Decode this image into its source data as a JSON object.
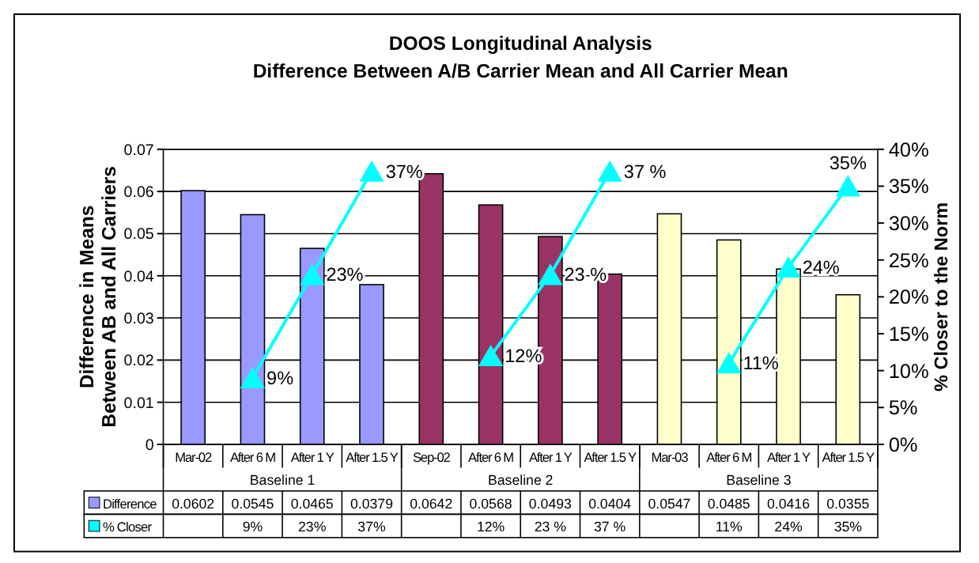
{
  "chart_data": {
    "type": "bar",
    "title": "DOOS Longitudinal Analysis",
    "subtitle": "Difference Between A/B Carrier Mean and All Carrier Mean",
    "ylabel": "Difference in Means\nBetween AB and All Carriers",
    "y2label": "% Closer to the Norm",
    "categories": [
      "Mar-02",
      "After 6 M",
      "After 1 Y",
      "After 1.5 Y",
      "Sep-02",
      "After 6 M",
      "After 1 Y",
      "After 1.5 Y",
      "Mar-03",
      "After 6 M",
      "After 1 Y",
      "After 1.5 Y"
    ],
    "series": [
      {
        "name": "Difference",
        "colors": [
          "#9999ff",
          "#9999ff",
          "#9999ff",
          "#9999ff",
          "#993366",
          "#993366",
          "#993366",
          "#993366",
          "#ffffcc",
          "#ffffcc",
          "#ffffcc",
          "#ffffcc"
        ],
        "values": [
          0.0602,
          0.0545,
          0.0465,
          0.0379,
          0.0642,
          0.0568,
          0.0493,
          0.0404,
          0.0547,
          0.0485,
          0.0416,
          0.0355
        ],
        "value_labels": [
          "0.0602",
          "0.0545",
          "0.0465",
          "0.0379",
          "0.0642",
          "0.0568",
          "0.0493",
          "0.0404",
          "0.0547",
          "0.0485",
          "0.0416",
          "0.0355"
        ]
      },
      {
        "name": "% Closer",
        "type": "line",
        "axis": "y2",
        "color": "#00ffff",
        "marker": "triangle",
        "values": [
          null,
          9,
          23,
          37,
          null,
          12,
          23,
          37,
          null,
          11,
          24,
          35
        ],
        "value_labels": [
          null,
          "9%",
          "23%",
          "37%",
          null,
          "12%",
          "23 %",
          "37 %",
          null,
          "11%",
          "24%",
          "35%"
        ]
      }
    ],
    "ylim": [
      0,
      0.07
    ],
    "yticks": [
      0,
      0.01,
      0.02,
      0.03,
      0.04,
      0.05,
      0.06,
      0.07
    ],
    "y2lim": [
      0,
      40
    ],
    "y2ticks": [
      {
        "value": 0,
        "label": "0%"
      },
      {
        "value": 5,
        "label": "5%"
      },
      {
        "value": 10,
        "label": "10%"
      },
      {
        "value": 15,
        "label": "15%"
      },
      {
        "value": 20,
        "label": "20%"
      },
      {
        "value": 25,
        "label": "25%"
      },
      {
        "value": 30,
        "label": "30%"
      },
      {
        "value": 35,
        "label": "35%"
      },
      {
        "value": 40,
        "label": "40%"
      }
    ],
    "grid": "y",
    "legend": "bottom left",
    "annotations": [
      "Baseline 1",
      "Baseline 2",
      "Baseline 3"
    ]
  }
}
